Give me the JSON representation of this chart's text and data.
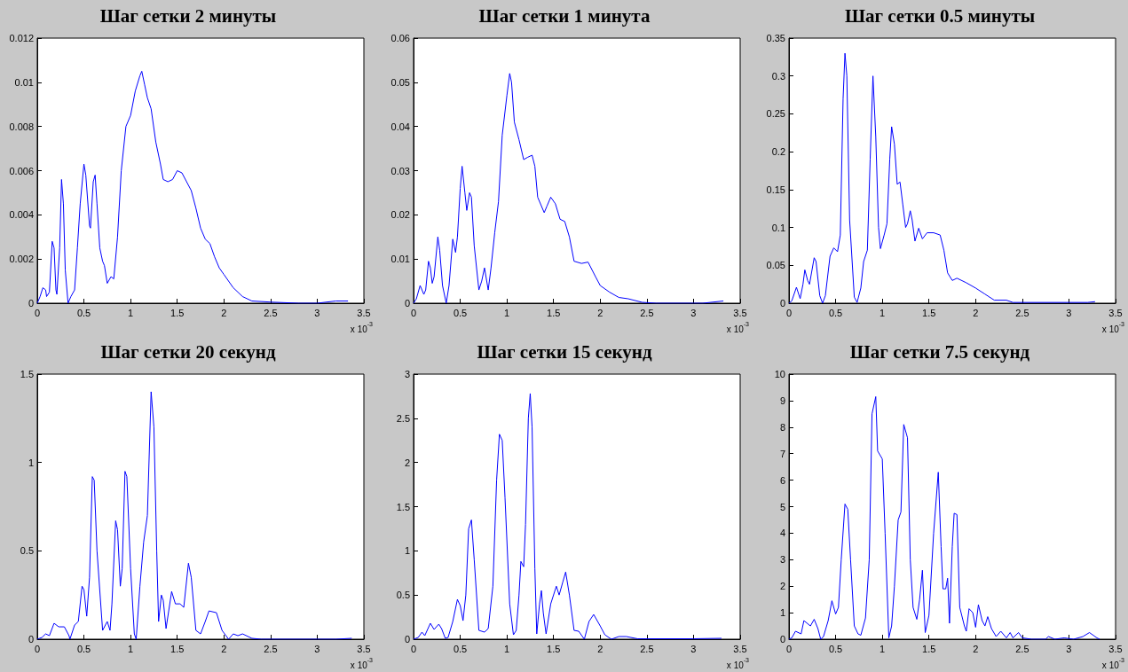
{
  "chart_data": [
    {
      "type": "line",
      "title": "Шаг сетки 2 минуты",
      "color": "#0000ff",
      "xlim": [
        0,
        3.5
      ],
      "xticks": [
        0,
        0.5,
        1,
        1.5,
        2,
        2.5,
        3,
        3.5
      ],
      "ylim": [
        0,
        0.012
      ],
      "yticks": [
        0,
        0.002,
        0.004,
        0.006,
        0.008,
        0.01,
        0.012
      ],
      "annotations": [
        "x 10$^{-3}$"
      ],
      "x": [
        0,
        0.03,
        0.06,
        0.09,
        0.1,
        0.13,
        0.16,
        0.18,
        0.2,
        0.21,
        0.24,
        0.26,
        0.28,
        0.3,
        0.33,
        0.36,
        0.4,
        0.43,
        0.46,
        0.5,
        0.52,
        0.56,
        0.57,
        0.6,
        0.62,
        0.64,
        0.67,
        0.7,
        0.72,
        0.75,
        0.79,
        0.82,
        0.86,
        0.9,
        0.95,
        1.0,
        1.05,
        1.1,
        1.12,
        1.15,
        1.18,
        1.22,
        1.27,
        1.32,
        1.35,
        1.4,
        1.45,
        1.5,
        1.55,
        1.6,
        1.65,
        1.7,
        1.75,
        1.8,
        1.85,
        1.9,
        1.95,
        2.0,
        2.1,
        2.2,
        2.3,
        2.5,
        2.8,
        3.0,
        3.2,
        3.33
      ],
      "values": [
        0,
        0.0003,
        0.0007,
        0.0006,
        0.0003,
        0.0005,
        0.0028,
        0.0025,
        0.0006,
        0.0004,
        0.0025,
        0.0056,
        0.0045,
        0.0015,
        0,
        0.0003,
        0.0006,
        0.0025,
        0.0045,
        0.0063,
        0.0058,
        0.0035,
        0.0034,
        0.0055,
        0.0058,
        0.0045,
        0.0025,
        0.0019,
        0.0017,
        0.0009,
        0.0012,
        0.0011,
        0.003,
        0.006,
        0.008,
        0.0085,
        0.0096,
        0.0103,
        0.0105,
        0.0099,
        0.0093,
        0.0088,
        0.0073,
        0.0063,
        0.0056,
        0.0055,
        0.0056,
        0.006,
        0.0059,
        0.0055,
        0.0051,
        0.0043,
        0.0034,
        0.0029,
        0.0027,
        0.0021,
        0.0016,
        0.0013,
        0.0007,
        0.0003,
        0.0001,
        5e-05,
        0,
        0,
        0.0001,
        0.0001
      ]
    },
    {
      "type": "line",
      "title": "Шаг сетки 1 минута",
      "color": "#0000ff",
      "xlim": [
        0,
        3.5
      ],
      "xticks": [
        0,
        0.5,
        1,
        1.5,
        2,
        2.5,
        3,
        3.5
      ],
      "ylim": [
        0,
        0.06
      ],
      "yticks": [
        0,
        0.01,
        0.02,
        0.03,
        0.04,
        0.05,
        0.06
      ],
      "annotations": [
        "x 10$^{-3}$"
      ],
      "x": [
        0,
        0.03,
        0.07,
        0.11,
        0.13,
        0.16,
        0.18,
        0.2,
        0.22,
        0.26,
        0.28,
        0.31,
        0.35,
        0.38,
        0.42,
        0.45,
        0.47,
        0.5,
        0.52,
        0.55,
        0.57,
        0.6,
        0.62,
        0.65,
        0.7,
        0.73,
        0.76,
        0.8,
        0.83,
        0.87,
        0.91,
        0.95,
        1.0,
        1.03,
        1.05,
        1.08,
        1.13,
        1.18,
        1.22,
        1.27,
        1.3,
        1.33,
        1.4,
        1.43,
        1.47,
        1.52,
        1.57,
        1.62,
        1.67,
        1.72,
        1.8,
        1.87,
        1.95,
        2.0,
        2.1,
        2.2,
        2.3,
        2.45,
        2.6,
        3.1,
        3.32
      ],
      "values": [
        0,
        0.001,
        0.004,
        0.002,
        0.003,
        0.0095,
        0.008,
        0.0045,
        0.006,
        0.015,
        0.012,
        0.004,
        0,
        0.004,
        0.0145,
        0.0115,
        0.015,
        0.026,
        0.031,
        0.025,
        0.021,
        0.025,
        0.024,
        0.013,
        0.003,
        0.005,
        0.008,
        0.003,
        0.008,
        0.016,
        0.023,
        0.038,
        0.047,
        0.052,
        0.05,
        0.041,
        0.037,
        0.0325,
        0.033,
        0.0335,
        0.031,
        0.024,
        0.0205,
        0.022,
        0.024,
        0.0225,
        0.019,
        0.0185,
        0.015,
        0.0095,
        0.009,
        0.0093,
        0.006,
        0.004,
        0.0025,
        0.0013,
        0.001,
        0.0002,
        0,
        0,
        0.0005
      ]
    },
    {
      "type": "line",
      "title": "Шаг сетки 0.5 минуты",
      "color": "#0000ff",
      "xlim": [
        0,
        3.5
      ],
      "xticks": [
        0,
        0.5,
        1,
        1.5,
        2,
        2.5,
        3,
        3.5
      ],
      "ylim": [
        0,
        0.35
      ],
      "yticks": [
        0,
        0.05,
        0.1,
        0.15,
        0.2,
        0.25,
        0.3,
        0.35
      ],
      "annotations": [
        "x 10$^{-3}$"
      ],
      "x": [
        0,
        0.03,
        0.08,
        0.12,
        0.15,
        0.17,
        0.2,
        0.22,
        0.27,
        0.29,
        0.33,
        0.36,
        0.39,
        0.44,
        0.48,
        0.52,
        0.55,
        0.58,
        0.6,
        0.62,
        0.65,
        0.7,
        0.73,
        0.77,
        0.8,
        0.84,
        0.87,
        0.9,
        0.93,
        0.96,
        0.98,
        1.02,
        1.05,
        1.08,
        1.1,
        1.13,
        1.16,
        1.19,
        1.22,
        1.25,
        1.27,
        1.3,
        1.32,
        1.35,
        1.39,
        1.43,
        1.48,
        1.55,
        1.62,
        1.66,
        1.7,
        1.75,
        1.8,
        1.9,
        2.0,
        2.1,
        2.2,
        2.33,
        2.4,
        3.2,
        3.28
      ],
      "values": [
        0,
        0.003,
        0.021,
        0.006,
        0.025,
        0.044,
        0.03,
        0.025,
        0.06,
        0.055,
        0.01,
        0,
        0.01,
        0.062,
        0.073,
        0.068,
        0.09,
        0.27,
        0.33,
        0.3,
        0.11,
        0.008,
        0.001,
        0.02,
        0.055,
        0.07,
        0.19,
        0.3,
        0.22,
        0.1,
        0.072,
        0.09,
        0.105,
        0.19,
        0.233,
        0.21,
        0.157,
        0.16,
        0.13,
        0.1,
        0.105,
        0.122,
        0.11,
        0.082,
        0.099,
        0.085,
        0.093,
        0.093,
        0.09,
        0.07,
        0.04,
        0.03,
        0.033,
        0.027,
        0.02,
        0.012,
        0.004,
        0.004,
        0.001,
        0.001,
        0.002
      ]
    },
    {
      "type": "line",
      "title": "Шаг сетки 20 секунд",
      "color": "#0000ff",
      "xlim": [
        0,
        3.5
      ],
      "xticks": [
        0,
        0.5,
        1,
        1.5,
        2,
        2.5,
        3,
        3.5
      ],
      "ylim": [
        0,
        1.5
      ],
      "yticks": [
        0,
        0.5,
        1,
        1.5
      ],
      "annotations": [
        "x 10$^{-3}$"
      ],
      "x": [
        0,
        0.05,
        0.09,
        0.13,
        0.18,
        0.23,
        0.29,
        0.34,
        0.35,
        0.4,
        0.44,
        0.48,
        0.5,
        0.53,
        0.56,
        0.59,
        0.61,
        0.64,
        0.7,
        0.75,
        0.78,
        0.8,
        0.84,
        0.86,
        0.89,
        0.91,
        0.94,
        0.96,
        1.0,
        1.04,
        1.06,
        1.1,
        1.14,
        1.18,
        1.22,
        1.25,
        1.28,
        1.3,
        1.33,
        1.35,
        1.38,
        1.44,
        1.48,
        1.53,
        1.57,
        1.62,
        1.65,
        1.7,
        1.75,
        1.8,
        1.84,
        1.92,
        1.98,
        2.05,
        2.1,
        2.15,
        2.2,
        2.3,
        2.4,
        3.2,
        3.37
      ],
      "values": [
        0,
        0.01,
        0.03,
        0.02,
        0.09,
        0.07,
        0.07,
        0.02,
        0,
        0.08,
        0.1,
        0.3,
        0.28,
        0.13,
        0.35,
        0.92,
        0.9,
        0.5,
        0.05,
        0.1,
        0.05,
        0.2,
        0.67,
        0.62,
        0.3,
        0.4,
        0.95,
        0.92,
        0.4,
        0.03,
        0,
        0.3,
        0.55,
        0.7,
        1.4,
        1.2,
        0.5,
        0.1,
        0.25,
        0.22,
        0.06,
        0.27,
        0.2,
        0.2,
        0.18,
        0.43,
        0.35,
        0.05,
        0.03,
        0.1,
        0.16,
        0.15,
        0.05,
        0,
        0.03,
        0.02,
        0.03,
        0.005,
        0,
        0,
        0.005
      ]
    },
    {
      "type": "line",
      "title": "Шаг сетки 15 секунд",
      "color": "#0000ff",
      "xlim": [
        0,
        3.5
      ],
      "xticks": [
        0,
        0.5,
        1,
        1.5,
        2,
        2.5,
        3,
        3.5
      ],
      "ylim": [
        0,
        3
      ],
      "yticks": [
        0,
        0.5,
        1,
        1.5,
        2,
        2.5,
        3
      ],
      "annotations": [
        "x 10$^{-3}$"
      ],
      "x": [
        0,
        0.05,
        0.09,
        0.12,
        0.18,
        0.22,
        0.27,
        0.3,
        0.34,
        0.37,
        0.42,
        0.47,
        0.5,
        0.53,
        0.56,
        0.59,
        0.62,
        0.65,
        0.7,
        0.76,
        0.8,
        0.85,
        0.89,
        0.92,
        0.95,
        0.98,
        1.03,
        1.07,
        1.1,
        1.13,
        1.15,
        1.18,
        1.2,
        1.23,
        1.25,
        1.27,
        1.3,
        1.32,
        1.35,
        1.37,
        1.39,
        1.42,
        1.47,
        1.53,
        1.56,
        1.6,
        1.63,
        1.67,
        1.72,
        1.77,
        1.83,
        1.88,
        1.93,
        2.0,
        2.05,
        2.12,
        2.2,
        2.28,
        2.4,
        3.0,
        3.3
      ],
      "values": [
        0,
        0.02,
        0.08,
        0.04,
        0.18,
        0.11,
        0.17,
        0.12,
        0.01,
        0.02,
        0.2,
        0.45,
        0.38,
        0.21,
        0.5,
        1.25,
        1.35,
        0.9,
        0.1,
        0.08,
        0.12,
        0.6,
        1.8,
        2.32,
        2.25,
        1.6,
        0.4,
        0.05,
        0.1,
        0.5,
        0.88,
        0.82,
        1.3,
        2.5,
        2.78,
        2.4,
        0.8,
        0.06,
        0.4,
        0.55,
        0.3,
        0.06,
        0.4,
        0.6,
        0.5,
        0.65,
        0.76,
        0.5,
        0.1,
        0.09,
        0,
        0.2,
        0.28,
        0.15,
        0.05,
        0,
        0.03,
        0.03,
        0.005,
        0.005,
        0.01
      ]
    },
    {
      "type": "line",
      "title": "Шаг сетки 7.5 секунд",
      "color": "#0000ff",
      "xlim": [
        0,
        3.5
      ],
      "xticks": [
        0,
        0.5,
        1,
        1.5,
        2,
        2.5,
        3,
        3.5
      ],
      "ylim": [
        0,
        10
      ],
      "yticks": [
        0,
        1,
        2,
        3,
        4,
        5,
        6,
        7,
        8,
        9,
        10
      ],
      "annotations": [
        "x 10$^{-3}$"
      ],
      "x": [
        0,
        0.03,
        0.07,
        0.13,
        0.16,
        0.23,
        0.27,
        0.31,
        0.34,
        0.37,
        0.42,
        0.46,
        0.5,
        0.53,
        0.56,
        0.6,
        0.63,
        0.66,
        0.7,
        0.74,
        0.77,
        0.82,
        0.86,
        0.89,
        0.93,
        0.95,
        1.0,
        1.03,
        1.07,
        1.1,
        1.13,
        1.17,
        1.2,
        1.23,
        1.27,
        1.3,
        1.33,
        1.37,
        1.4,
        1.43,
        1.46,
        1.5,
        1.55,
        1.6,
        1.63,
        1.65,
        1.68,
        1.7,
        1.72,
        1.75,
        1.77,
        1.8,
        1.83,
        1.88,
        1.9,
        1.93,
        1.97,
        2.0,
        2.03,
        2.07,
        2.1,
        2.13,
        2.17,
        2.22,
        2.27,
        2.33,
        2.37,
        2.4,
        2.46,
        2.5,
        2.6,
        2.75,
        2.78,
        2.85,
        2.95,
        3.05,
        3.1,
        3.15,
        3.22,
        3.3,
        3.33
      ],
      "values": [
        0,
        0.05,
        0.3,
        0.2,
        0.7,
        0.5,
        0.75,
        0.4,
        0,
        0.1,
        0.7,
        1.45,
        0.95,
        1.2,
        3.0,
        5.1,
        4.9,
        3.0,
        0.5,
        0.2,
        0.15,
        0.8,
        3.0,
        8.5,
        9.15,
        7.1,
        6.8,
        4.0,
        0.05,
        0.5,
        2.0,
        4.5,
        4.8,
        8.1,
        7.6,
        3.0,
        1.2,
        0.75,
        1.5,
        2.6,
        0.25,
        0.9,
        4.0,
        6.3,
        3.5,
        1.9,
        1.9,
        2.3,
        0.6,
        3.5,
        4.75,
        4.7,
        1.2,
        0.5,
        0.3,
        1.15,
        1.0,
        0.45,
        1.3,
        0.7,
        0.5,
        0.85,
        0.4,
        0.1,
        0.3,
        0.05,
        0.25,
        0.05,
        0.25,
        0.05,
        0,
        0,
        0.1,
        0,
        0.05,
        0,
        0.05,
        0.1,
        0.25,
        0.05,
        0
      ]
    }
  ]
}
